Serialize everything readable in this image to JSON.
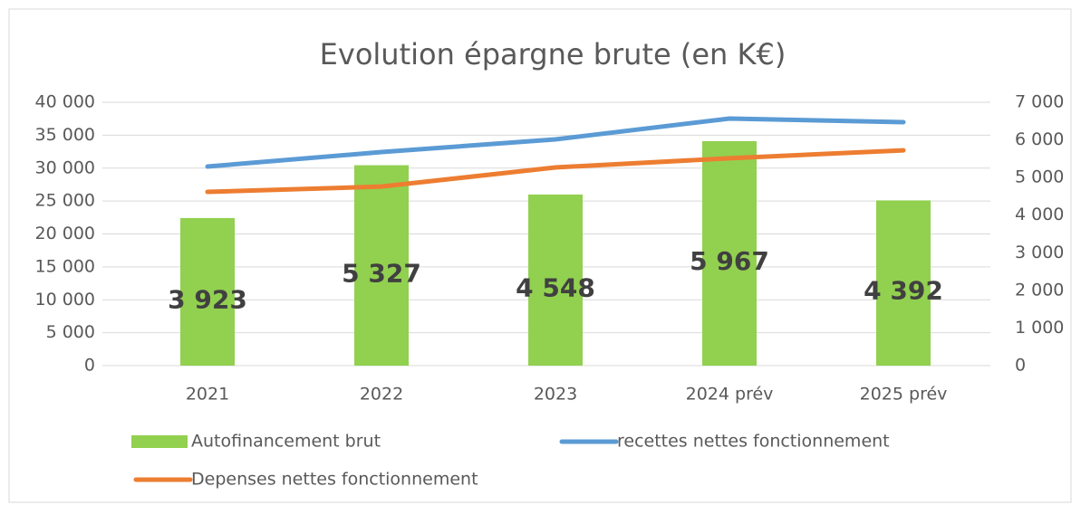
{
  "chart_data": {
    "type": "bar",
    "title": "Evolution épargne brute (en K€)",
    "categories": [
      "2021",
      "2022",
      "2023",
      "2024 prév",
      "2025 prév"
    ],
    "series": [
      {
        "name": "Autofinancement brut",
        "type": "bar",
        "axis": "y2",
        "color": "#92d050",
        "values": [
          3923,
          5327,
          4548,
          5967,
          4392
        ],
        "value_labels": [
          "3 923",
          "5 327",
          "4 548",
          "5 967",
          "4 392"
        ]
      },
      {
        "name": "recettes nettes fonctionnement",
        "type": "line",
        "axis": "y",
        "color": "#5b9bd5",
        "values": [
          30240,
          32440,
          34360,
          37530,
          36980
        ]
      },
      {
        "name": "Depenses nettes fonctionnement",
        "type": "line",
        "axis": "y",
        "color": "#ed7d31",
        "values": [
          26390,
          27200,
          30100,
          31500,
          32700
        ]
      }
    ],
    "ylim": [
      0,
      40000
    ],
    "yticks": [
      0,
      {
        "value": 5000,
        "label": "5 000"
      },
      {
        "value": 10000,
        "label": "10 000"
      },
      {
        "value": 15000,
        "label": "15 000"
      },
      {
        "value": 20000,
        "label": "20 000"
      },
      {
        "value": 25000,
        "label": "25 000"
      },
      {
        "value": 30000,
        "label": "30 000"
      },
      {
        "value": 35000,
        "label": "35 000"
      },
      {
        "value": 40000,
        "label": "40 000"
      }
    ],
    "y2lim": [
      0,
      7000
    ],
    "y2ticks": [
      0,
      {
        "value": 1000,
        "label": "1 000"
      },
      {
        "value": 2000,
        "label": "2 000"
      },
      {
        "value": 3000,
        "label": "3 000"
      },
      {
        "value": 4000,
        "label": "4 000"
      },
      {
        "value": 5000,
        "label": "5 000"
      },
      {
        "value": 6000,
        "label": "6 000"
      },
      {
        "value": 7000,
        "label": "7 000"
      }
    ],
    "grid": true
  }
}
